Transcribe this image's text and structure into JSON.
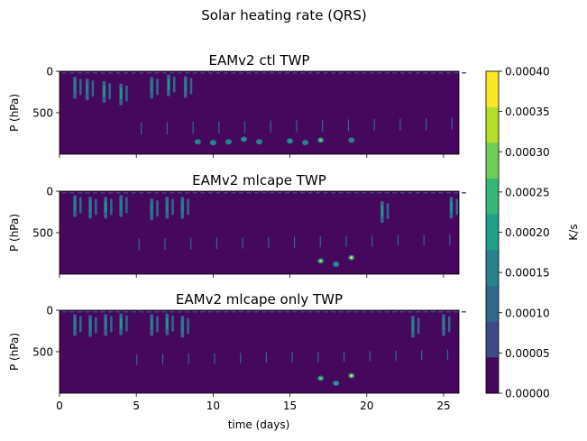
{
  "figure": {
    "suptitle": "Solar heating rate (QRS)"
  },
  "colorbar": {
    "label": "K/s",
    "ticks": [
      "0.00000",
      "0.00005",
      "0.00010",
      "0.00015",
      "0.00020",
      "0.00025",
      "0.00030",
      "0.00035",
      "0.00040"
    ],
    "levels": [
      0,
      5e-05,
      0.0001,
      0.00015,
      0.0002,
      0.00025,
      0.0003,
      0.00035,
      0.0004
    ],
    "colors": [
      "#46085c",
      "#3e4a89",
      "#31688e",
      "#26828e",
      "#1f9e89",
      "#35b779",
      "#6ece58",
      "#b5de2b",
      "#fde725"
    ]
  },
  "chart_data": [
    {
      "type": "heatmap",
      "title": "EAMv2 ctl TWP",
      "ylabel": "P (hPa)",
      "xlabel": "",
      "xlim": [
        0,
        26
      ],
      "ylim": [
        1000,
        0
      ],
      "yticks": [
        "0",
        "500"
      ],
      "xticks": [],
      "features": [
        {
          "x": 1.0,
          "p": 200,
          "level": 0.0001
        },
        {
          "x": 1.8,
          "p": 220,
          "level": 0.0001
        },
        {
          "x": 2.9,
          "p": 250,
          "level": 0.00015
        },
        {
          "x": 4.0,
          "p": 280,
          "level": 0.00015
        },
        {
          "x": 6.0,
          "p": 200,
          "level": 0.0001
        },
        {
          "x": 7.1,
          "p": 170,
          "level": 0.00015
        },
        {
          "x": 8.2,
          "p": 190,
          "level": 0.0001
        },
        {
          "x": 9.0,
          "p": 850,
          "level": 0.0001
        },
        {
          "x": 10.0,
          "p": 860,
          "level": 0.0001
        },
        {
          "x": 11.0,
          "p": 850,
          "level": 0.0001
        },
        {
          "x": 12.0,
          "p": 820,
          "level": 0.00015
        },
        {
          "x": 13.0,
          "p": 850,
          "level": 0.0001
        },
        {
          "x": 15.0,
          "p": 840,
          "level": 0.00015
        },
        {
          "x": 16.0,
          "p": 860,
          "level": 0.0001
        },
        {
          "x": 17.0,
          "p": 830,
          "level": 0.00025
        },
        {
          "x": 19.0,
          "p": 830,
          "level": 0.0001
        }
      ]
    },
    {
      "type": "heatmap",
      "title": "EAMv2 mlcape TWP",
      "ylabel": "P (hPa)",
      "xlabel": "",
      "xlim": [
        0,
        26
      ],
      "ylim": [
        1000,
        0
      ],
      "yticks": [
        "0",
        "500"
      ],
      "xticks": [],
      "features": [
        {
          "x": 1.0,
          "p": 180,
          "level": 0.0001
        },
        {
          "x": 2.0,
          "p": 200,
          "level": 0.0001
        },
        {
          "x": 3.0,
          "p": 200,
          "level": 0.00015
        },
        {
          "x": 4.0,
          "p": 180,
          "level": 0.0001
        },
        {
          "x": 6.0,
          "p": 220,
          "level": 0.0001
        },
        {
          "x": 7.0,
          "p": 200,
          "level": 0.0001
        },
        {
          "x": 8.0,
          "p": 200,
          "level": 0.0001
        },
        {
          "x": 17.0,
          "p": 840,
          "level": 0.0003
        },
        {
          "x": 18.0,
          "p": 880,
          "level": 0.00015
        },
        {
          "x": 19.0,
          "p": 800,
          "level": 0.00035
        },
        {
          "x": 21.0,
          "p": 250,
          "level": 0.00015
        },
        {
          "x": 25.5,
          "p": 200,
          "level": 0.00015
        }
      ]
    },
    {
      "type": "heatmap",
      "title": "EAMv2 mlcape only TWP",
      "ylabel": "P (hPa)",
      "xlabel": "time (days)",
      "xlim": [
        0,
        26
      ],
      "ylim": [
        1000,
        0
      ],
      "yticks": [
        "0",
        "500"
      ],
      "xticks": [
        "0",
        "5",
        "10",
        "15",
        "20",
        "25"
      ],
      "xtick_values": [
        0,
        5,
        10,
        15,
        20,
        25
      ],
      "features": [
        {
          "x": 1.0,
          "p": 180,
          "level": 0.0001
        },
        {
          "x": 2.0,
          "p": 190,
          "level": 0.0001
        },
        {
          "x": 3.0,
          "p": 180,
          "level": 0.0001
        },
        {
          "x": 4.0,
          "p": 170,
          "level": 0.00015
        },
        {
          "x": 6.0,
          "p": 180,
          "level": 0.0001
        },
        {
          "x": 7.0,
          "p": 170,
          "level": 0.00015
        },
        {
          "x": 8.0,
          "p": 200,
          "level": 0.0001
        },
        {
          "x": 17.0,
          "p": 820,
          "level": 0.00025
        },
        {
          "x": 18.0,
          "p": 880,
          "level": 0.00015
        },
        {
          "x": 19.0,
          "p": 790,
          "level": 0.00035
        },
        {
          "x": 23.0,
          "p": 200,
          "level": 0.0001
        },
        {
          "x": 25.0,
          "p": 180,
          "level": 0.0001
        }
      ]
    }
  ]
}
